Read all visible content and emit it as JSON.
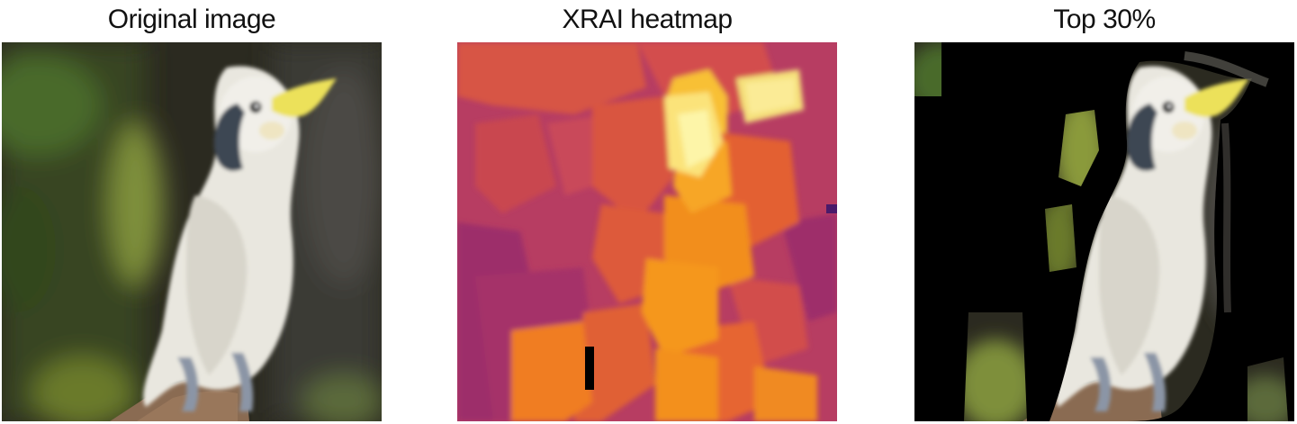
{
  "panels": [
    {
      "title": "Original image"
    },
    {
      "title": "XRAI heatmap"
    },
    {
      "title": "Top 30%"
    }
  ]
}
